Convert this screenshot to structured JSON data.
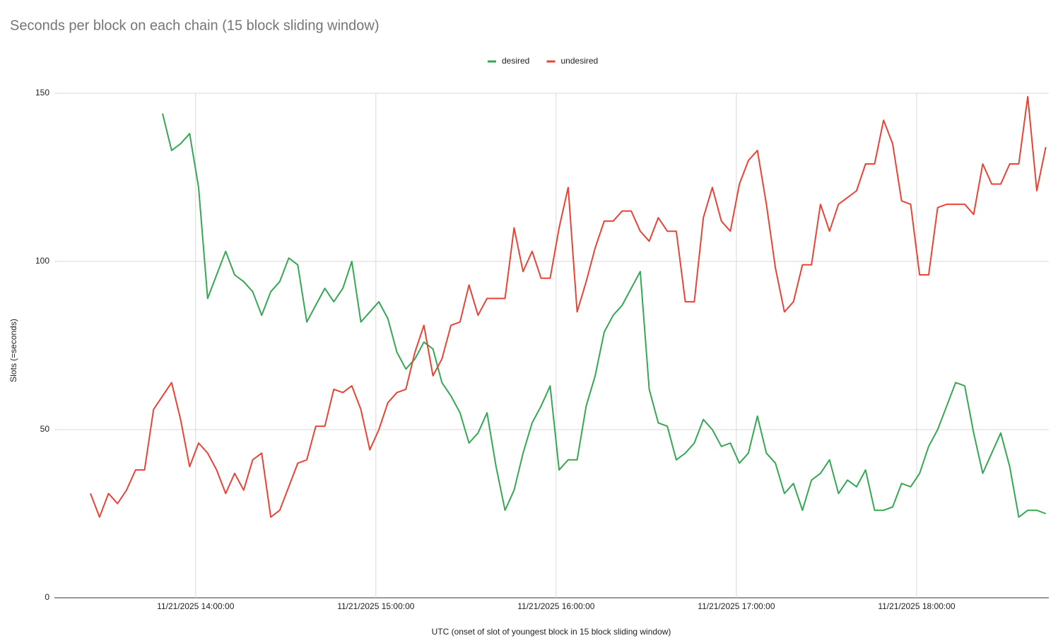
{
  "chart_data": {
    "type": "line",
    "title": "Seconds per block on each chain (15 block sliding window)",
    "x_label": "UTC (onset of slot of youngest block in 15 block sliding window)",
    "y_label": "Slots (=seconds)",
    "legend": "top",
    "grid": true,
    "x": [
      "11/21/2025 13:25:00",
      "11/21/2025 13:28:00",
      "11/21/2025 13:31:00",
      "11/21/2025 13:34:00",
      "11/21/2025 13:37:00",
      "11/21/2025 13:40:00",
      "11/21/2025 13:43:00",
      "11/21/2025 13:46:00",
      "11/21/2025 13:49:00",
      "11/21/2025 13:52:00",
      "11/21/2025 13:55:00",
      "11/21/2025 13:58:00",
      "11/21/2025 14:01:00",
      "11/21/2025 14:04:00",
      "11/21/2025 14:07:00",
      "11/21/2025 14:10:00",
      "11/21/2025 14:13:00",
      "11/21/2025 14:16:00",
      "11/21/2025 14:19:00",
      "11/21/2025 14:22:00",
      "11/21/2025 14:25:00",
      "11/21/2025 14:28:00",
      "11/21/2025 14:31:00",
      "11/21/2025 14:34:00",
      "11/21/2025 14:37:00",
      "11/21/2025 14:40:00",
      "11/21/2025 14:43:00",
      "11/21/2025 14:46:00",
      "11/21/2025 14:49:00",
      "11/21/2025 14:52:00",
      "11/21/2025 14:55:00",
      "11/21/2025 14:58:00",
      "11/21/2025 15:01:00",
      "11/21/2025 15:04:00",
      "11/21/2025 15:07:00",
      "11/21/2025 15:10:00",
      "11/21/2025 15:13:00",
      "11/21/2025 15:16:00",
      "11/21/2025 15:19:00",
      "11/21/2025 15:22:00",
      "11/21/2025 15:25:00",
      "11/21/2025 15:28:00",
      "11/21/2025 15:31:00",
      "11/21/2025 15:34:00",
      "11/21/2025 15:37:00",
      "11/21/2025 15:40:00",
      "11/21/2025 15:43:00",
      "11/21/2025 15:46:00",
      "11/21/2025 15:49:00",
      "11/21/2025 15:52:00",
      "11/21/2025 15:55:00",
      "11/21/2025 15:58:00",
      "11/21/2025 16:01:00",
      "11/21/2025 16:04:00",
      "11/21/2025 16:07:00",
      "11/21/2025 16:10:00",
      "11/21/2025 16:13:00",
      "11/21/2025 16:16:00",
      "11/21/2025 16:19:00",
      "11/21/2025 16:22:00",
      "11/21/2025 16:25:00",
      "11/21/2025 16:28:00",
      "11/21/2025 16:31:00",
      "11/21/2025 16:34:00",
      "11/21/2025 16:37:00",
      "11/21/2025 16:40:00",
      "11/21/2025 16:43:00",
      "11/21/2025 16:46:00",
      "11/21/2025 16:49:00",
      "11/21/2025 16:52:00",
      "11/21/2025 16:55:00",
      "11/21/2025 16:58:00",
      "11/21/2025 17:01:00",
      "11/21/2025 17:04:00",
      "11/21/2025 17:07:00",
      "11/21/2025 17:10:00",
      "11/21/2025 17:13:00",
      "11/21/2025 17:16:00",
      "11/21/2025 17:19:00",
      "11/21/2025 17:22:00",
      "11/21/2025 17:25:00",
      "11/21/2025 17:28:00",
      "11/21/2025 17:31:00",
      "11/21/2025 17:34:00",
      "11/21/2025 17:37:00",
      "11/21/2025 17:40:00",
      "11/21/2025 17:43:00",
      "11/21/2025 17:46:00",
      "11/21/2025 17:49:00",
      "11/21/2025 17:52:00",
      "11/21/2025 17:55:00",
      "11/21/2025 17:58:00",
      "11/21/2025 18:01:00",
      "11/21/2025 18:04:00",
      "11/21/2025 18:07:00",
      "11/21/2025 18:10:00",
      "11/21/2025 18:13:00",
      "11/21/2025 18:16:00",
      "11/21/2025 18:19:00",
      "11/21/2025 18:22:00",
      "11/21/2025 18:25:00",
      "11/21/2025 18:28:00",
      "11/21/2025 18:31:00",
      "11/21/2025 18:34:00",
      "11/21/2025 18:37:00",
      "11/21/2025 18:40:00",
      "11/21/2025 18:43:00"
    ],
    "series": [
      {
        "name": "desired",
        "color": "#34a853",
        "values": [
          null,
          null,
          null,
          null,
          null,
          null,
          null,
          null,
          144,
          133,
          135,
          138,
          122,
          89,
          96,
          103,
          96,
          94,
          91,
          84,
          91,
          94,
          101,
          99,
          82,
          87,
          92,
          88,
          92,
          100,
          82,
          85,
          88,
          83,
          73,
          68,
          71,
          76,
          74,
          64,
          60,
          55,
          46,
          49,
          55,
          39,
          26,
          32,
          43,
          52,
          57,
          63,
          38,
          41,
          41,
          57,
          66,
          79,
          84,
          87,
          92,
          97,
          62,
          52,
          51,
          41,
          43,
          46,
          53,
          50,
          45,
          46,
          40,
          43,
          54,
          43,
          40,
          31,
          34,
          26,
          35,
          37,
          41,
          31,
          35,
          33,
          38,
          26,
          26,
          27,
          34,
          33,
          37,
          45,
          50,
          57,
          64,
          63,
          49,
          37,
          43,
          49,
          39,
          24,
          26,
          26,
          25
        ]
      },
      {
        "name": "undesired",
        "color": "#ea4335",
        "values": [
          31,
          24,
          31,
          28,
          32,
          38,
          38,
          56,
          60,
          64,
          53,
          39,
          46,
          43,
          38,
          31,
          37,
          32,
          41,
          43,
          24,
          26,
          33,
          40,
          41,
          51,
          51,
          62,
          61,
          63,
          56,
          44,
          50,
          58,
          61,
          62,
          73,
          81,
          66,
          71,
          81,
          82,
          93,
          84,
          89,
          89,
          89,
          110,
          97,
          103,
          95,
          95,
          110,
          122,
          85,
          94,
          104,
          112,
          112,
          115,
          115,
          109,
          106,
          113,
          109,
          109,
          88,
          88,
          113,
          122,
          112,
          109,
          123,
          130,
          133,
          117,
          98,
          85,
          88,
          99,
          99,
          117,
          109,
          117,
          119,
          121,
          129,
          129,
          142,
          135,
          118,
          117,
          96,
          96,
          116,
          117,
          117,
          117,
          114,
          129,
          123,
          123,
          129,
          129,
          149,
          121,
          134
        ]
      }
    ],
    "xlim": [
      "11/21/2025 13:13:00",
      "11/21/2025 18:44:00"
    ],
    "xticks": [
      "11/21/2025 14:00:00",
      "11/21/2025 15:00:00",
      "11/21/2025 16:00:00",
      "11/21/2025 17:00:00",
      "11/21/2025 18:00:00"
    ],
    "ylim": [
      0,
      150
    ],
    "yticks": [
      0,
      50,
      100,
      150
    ]
  }
}
